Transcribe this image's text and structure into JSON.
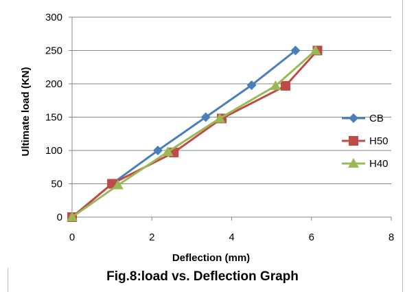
{
  "caption": "Fig.8:load vs. Deflection Graph",
  "chart_data": {
    "type": "line",
    "title": "",
    "xlabel": "Deflection (mm)",
    "ylabel": "Ultimate load (KN)",
    "xlim": [
      0,
      8
    ],
    "ylim": [
      0,
      300
    ],
    "xticks": [
      0,
      2,
      4,
      6,
      8
    ],
    "yticks": [
      0,
      50,
      100,
      150,
      200,
      250,
      300
    ],
    "grid": true,
    "legend_position": "right",
    "series": [
      {
        "name": "CB",
        "color": "#4a7ebb",
        "marker": "diamond",
        "points": [
          [
            0,
            0
          ],
          [
            1.0,
            50
          ],
          [
            2.15,
            100
          ],
          [
            3.35,
            150
          ],
          [
            4.5,
            198
          ],
          [
            5.6,
            250
          ]
        ]
      },
      {
        "name": "H50",
        "color": "#be4b48",
        "marker": "square",
        "points": [
          [
            0,
            0
          ],
          [
            1.0,
            50
          ],
          [
            2.55,
            97
          ],
          [
            3.75,
            148
          ],
          [
            5.35,
            197
          ],
          [
            6.15,
            250
          ]
        ]
      },
      {
        "name": "H40",
        "color": "#98b954",
        "marker": "triangle",
        "points": [
          [
            0,
            0
          ],
          [
            1.15,
            48
          ],
          [
            2.4,
            98
          ],
          [
            3.7,
            148
          ],
          [
            5.1,
            197
          ],
          [
            6.1,
            250
          ]
        ]
      }
    ]
  }
}
